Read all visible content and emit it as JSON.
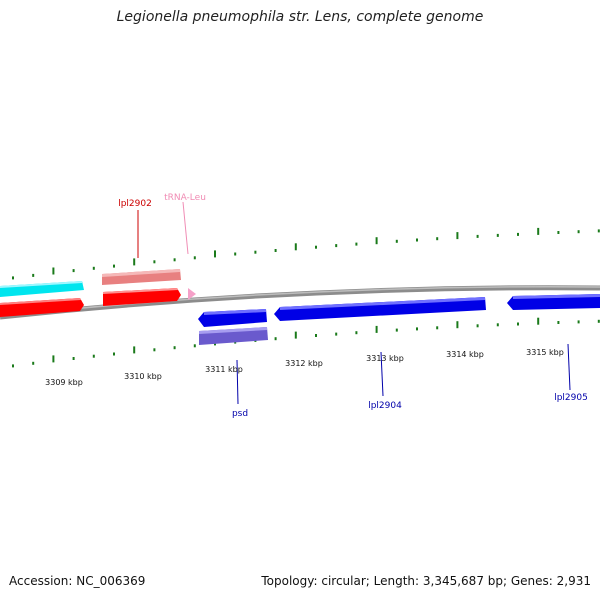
{
  "title": "Legionella pneumophila str. Lens, complete genome",
  "footer": {
    "accession": "Accession: NC_006369",
    "stats": "Topology: circular; Length: 3,345,687 bp; Genes: 2,931"
  },
  "ticks": [
    "3309 kbp",
    "3310 kbp",
    "3311 kbp",
    "3312 kbp",
    "3313 kbp",
    "3314 kbp",
    "3315 kbp"
  ],
  "gene_labels": [
    {
      "name": "lpl2902",
      "color": "#cc0000"
    },
    {
      "name": "tRNA-Leu",
      "color": "#f08cb4"
    },
    {
      "name": "psd",
      "color": "#0000aa"
    },
    {
      "name": "lpl2904",
      "color": "#0000aa"
    },
    {
      "name": "lpl2905",
      "color": "#0000aa"
    }
  ],
  "colors": {
    "backbone": "#8c8c8c",
    "tick": "#1a7a1a",
    "forward_cds": "#ff0000",
    "forward_cog": "#00e5ee",
    "forward_cog_2": "#e88080",
    "trna": "#f5a0c8",
    "reverse_cds": "#0000e6",
    "reverse_cog": "#6a5acd"
  }
}
